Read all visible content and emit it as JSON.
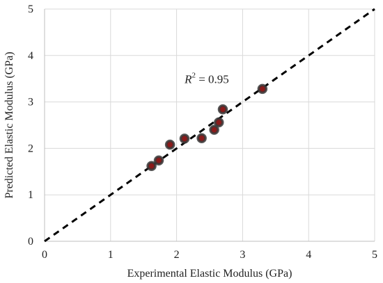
{
  "chart_data": {
    "type": "scatter",
    "title": "",
    "xlabel": "Experimental Elastic Modulus (GPa)",
    "ylabel": "Predicted Elastic Modulus (GPa)",
    "xlim": [
      0,
      5
    ],
    "ylim": [
      0,
      5
    ],
    "xticks": [
      0,
      1,
      2,
      3,
      4,
      5
    ],
    "yticks": [
      0,
      1,
      2,
      3,
      4,
      5
    ],
    "grid": true,
    "legend": "none",
    "series": [
      {
        "x": [
          1.62,
          1.73,
          1.9,
          2.12,
          2.38,
          2.57,
          2.64,
          2.7,
          3.3
        ],
        "y": [
          1.62,
          1.74,
          2.08,
          2.21,
          2.22,
          2.4,
          2.56,
          2.84,
          3.28
        ],
        "marker_fill": "#8b1a1a",
        "marker_edge": "#3a3a3a"
      }
    ],
    "reference_line": {
      "style": "dashed",
      "color": "#000000",
      "x": [
        0,
        5
      ],
      "y": [
        0,
        5
      ]
    },
    "annotations": [
      {
        "text_italic": "R",
        "superscript": "2",
        "text_rest": " = 0.95",
        "x": 2.1,
        "y": 3.45
      }
    ],
    "colors": {
      "grid": "#d9d9d9",
      "axis": "#bfbfbf",
      "text": "#222222"
    }
  }
}
